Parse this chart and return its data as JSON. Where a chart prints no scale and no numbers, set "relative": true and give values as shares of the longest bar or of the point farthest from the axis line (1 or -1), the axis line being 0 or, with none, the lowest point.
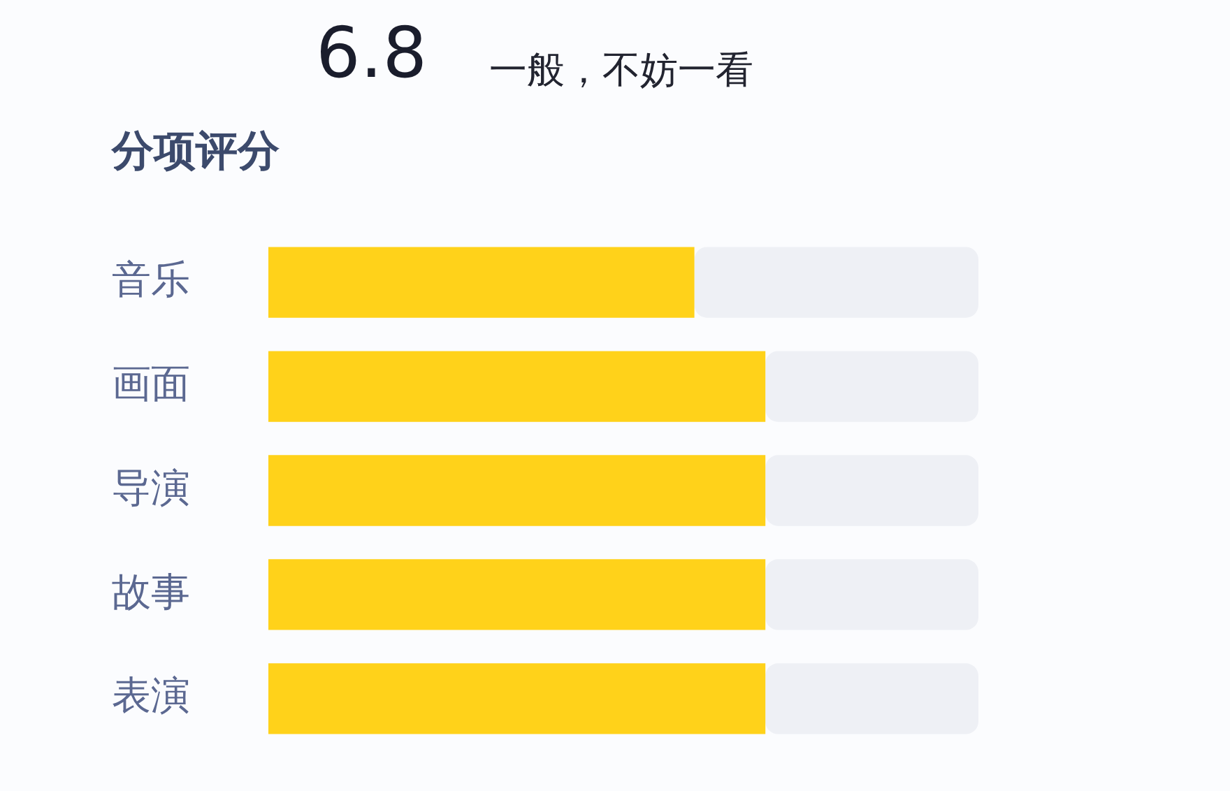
{
  "chart_data": {
    "type": "bar",
    "orientation": "horizontal",
    "stacked": true,
    "relative": true,
    "title": "6.8",
    "subtitle": "一般，不妨一看",
    "annotations": [
      "分项评分"
    ],
    "categories": [
      "音乐",
      "画面",
      "导演",
      "故事",
      "表演"
    ],
    "series": [
      {
        "color": "#ffd21a",
        "values": [
          0.6,
          0.7,
          0.7,
          0.7,
          0.7
        ]
      },
      {
        "color": "#eef0f5",
        "values": [
          0.4,
          0.3,
          0.3,
          0.3,
          0.3
        ]
      }
    ]
  }
}
